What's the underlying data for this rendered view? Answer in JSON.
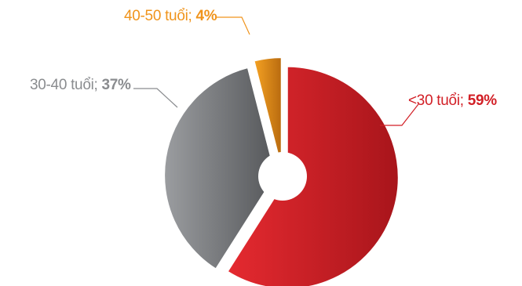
{
  "chart_data": {
    "type": "pie",
    "title": "",
    "slices": [
      {
        "label": "<30 tuổi",
        "value": 59,
        "value_label": "59%",
        "color": "#d21f26"
      },
      {
        "label": "30-40 tuổi",
        "value": 37,
        "value_label": "37%",
        "color": "#7a7c80"
      },
      {
        "label": "40-50 tuổi",
        "value": 4,
        "value_label": "4%",
        "color": "#f0941c"
      }
    ],
    "donut_hole": true,
    "exploded": true,
    "legend": "none",
    "label_colors": [
      "#d21f26",
      "#8a8c8f",
      "#f0941c"
    ]
  }
}
